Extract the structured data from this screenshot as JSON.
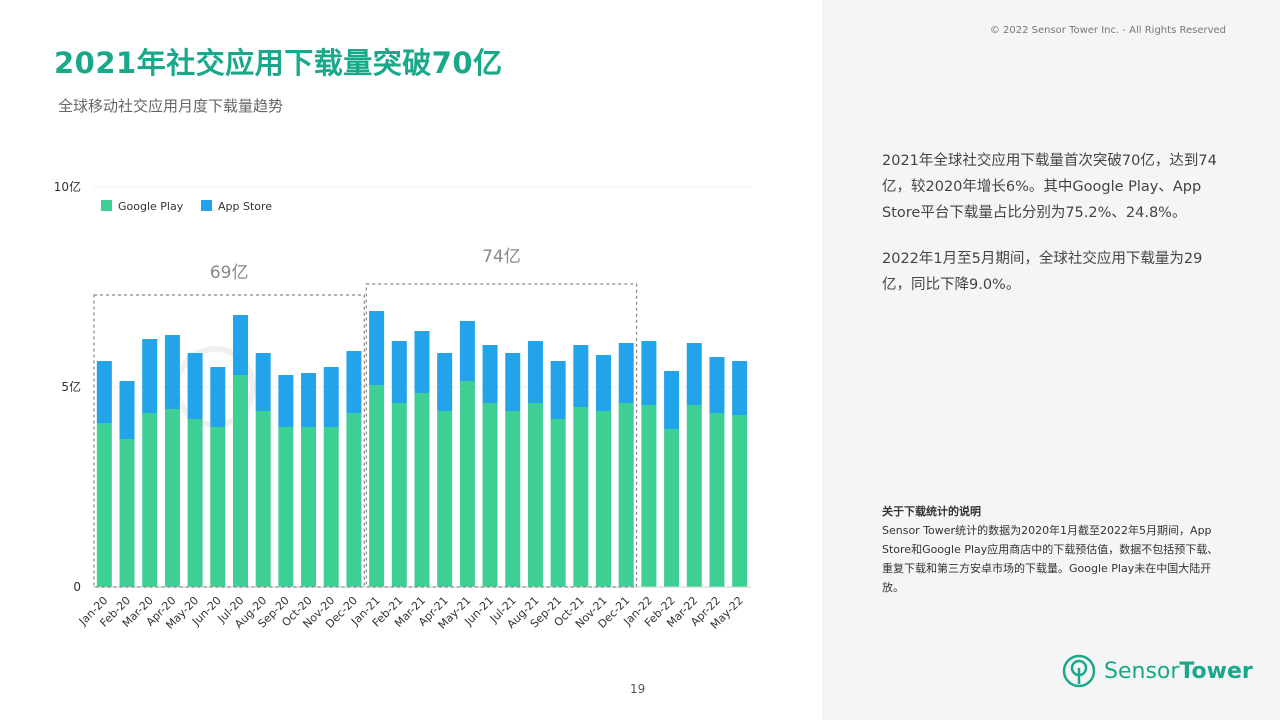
{
  "header": {
    "title": "2021年社交应用下载量突破70亿",
    "subtitle": "全球移动社交应用月度下载量趋势",
    "copyright": "© 2022 Sensor Tower Inc. - All Rights Reserved"
  },
  "summary": {
    "p1": "2021年全球社交应用下载量首次突破70亿，达到74亿，较2020年增长6%。其中Google Play、App Store平台下载量占比分别为75.2%、24.8%。",
    "p2": "2022年1月至5月期间，全球社交应用下载量为29亿，同比下降9.0%。"
  },
  "note": {
    "title": "关于下载统计的说明",
    "body": "Sensor Tower统计的数据为2020年1月截至2022年5月期间，App Store和Google Play应用商店中的下载预估值，数据不包括预下载、重复下载和第三方安卓市场的下载量。Google Play未在中国大陆开放。"
  },
  "logo": {
    "text_light": "Sensor",
    "text_bold": "Tower"
  },
  "page_number": "19",
  "colors": {
    "google_play": "#3ecf94",
    "app_store": "#23a3ea",
    "accent": "#1aa88b"
  },
  "chart_data": {
    "type": "bar",
    "stacked": true,
    "categories": [
      "Jan-20",
      "Feb-20",
      "Mar-20",
      "Apr-20",
      "May-20",
      "Jun-20",
      "Jul-20",
      "Aug-20",
      "Sep-20",
      "Oct-20",
      "Nov-20",
      "Dec-20",
      "Jan-21",
      "Feb-21",
      "Mar-21",
      "Apr-21",
      "May-21",
      "Jun-21",
      "Jul-21",
      "Aug-21",
      "Sep-21",
      "Oct-21",
      "Nov-21",
      "Dec-21",
      "Jan-22",
      "Feb-22",
      "Mar-22",
      "Apr-22",
      "May-22"
    ],
    "series": [
      {
        "name": "Google Play",
        "color": "#3ecf94",
        "values": [
          4.1,
          3.7,
          4.35,
          4.45,
          4.2,
          4.0,
          5.3,
          4.4,
          4.0,
          4.0,
          4.0,
          4.35,
          5.05,
          4.6,
          4.85,
          4.4,
          5.15,
          4.6,
          4.4,
          4.6,
          4.2,
          4.5,
          4.4,
          4.6,
          4.55,
          3.95,
          4.55,
          4.35,
          4.3
        ]
      },
      {
        "name": "App Store",
        "color": "#23a3ea",
        "values": [
          1.55,
          1.45,
          1.85,
          1.85,
          1.65,
          1.5,
          1.5,
          1.45,
          1.3,
          1.35,
          1.5,
          1.55,
          1.85,
          1.55,
          1.55,
          1.45,
          1.5,
          1.45,
          1.45,
          1.55,
          1.45,
          1.55,
          1.4,
          1.5,
          1.6,
          1.45,
          1.55,
          1.4,
          1.35
        ]
      }
    ],
    "y_ticks": [
      "0",
      "5亿",
      "10亿"
    ],
    "ylim": [
      0,
      10
    ],
    "legend_position": "top-left",
    "annotations": [
      {
        "label": "69亿",
        "from": "Jan-20",
        "to": "Dec-20"
      },
      {
        "label": "74亿",
        "from": "Jan-21",
        "to": "Dec-21"
      }
    ]
  }
}
